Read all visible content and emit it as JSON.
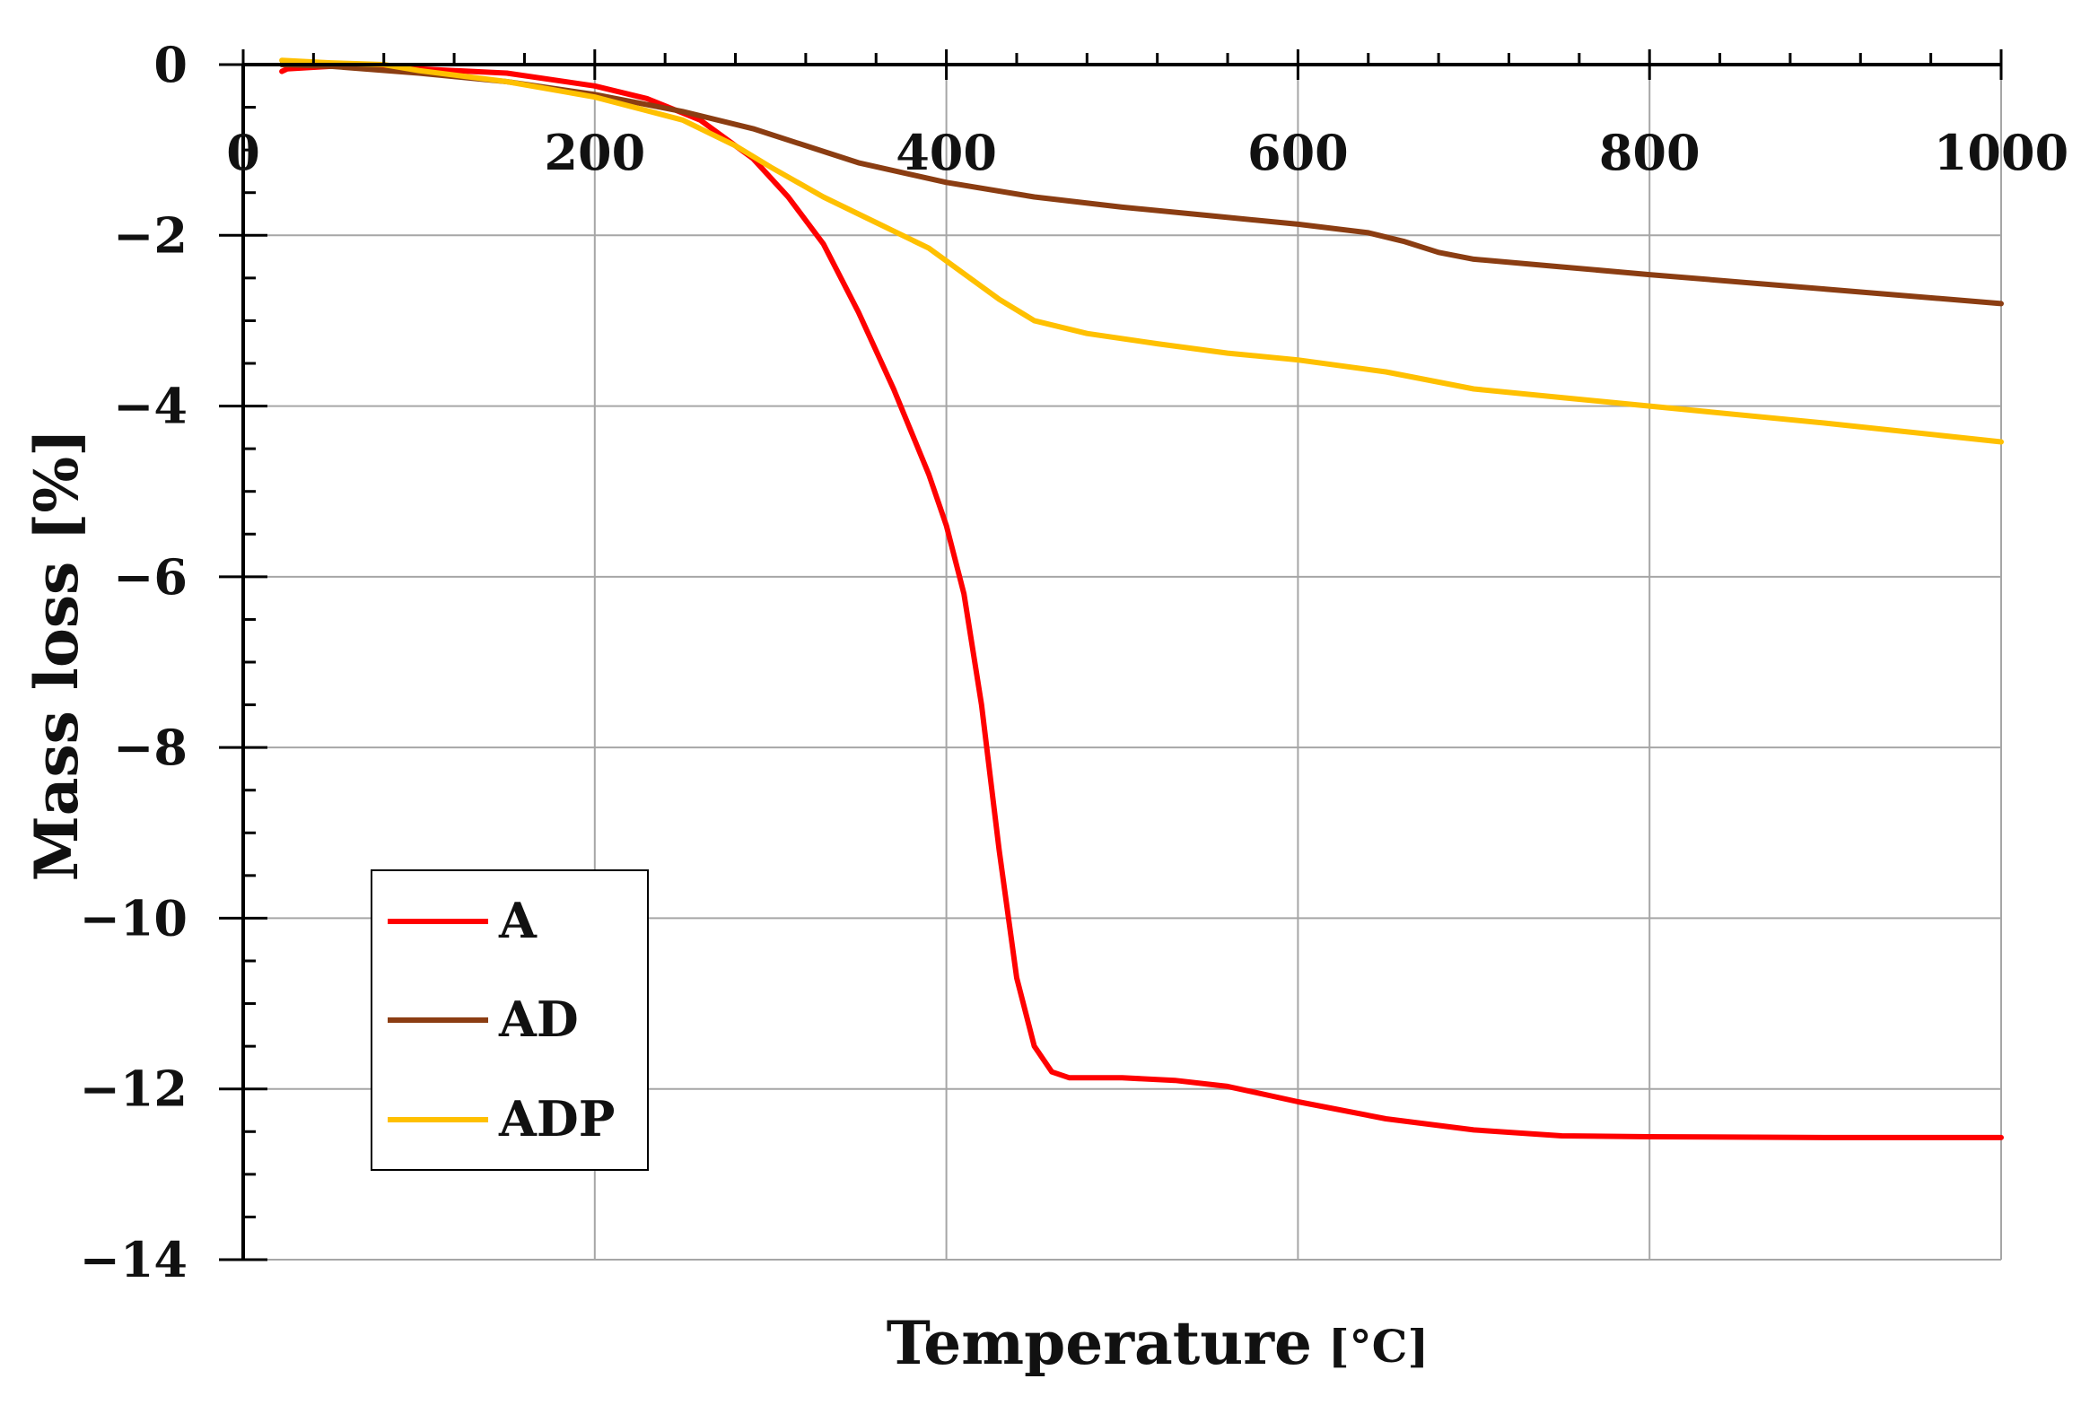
{
  "chart_data": {
    "type": "line",
    "title": "",
    "xlabel": "Temperature",
    "xunit": "[°C]",
    "ylabel": "Mass loss [%]",
    "xlim": [
      0,
      1000
    ],
    "ylim": [
      -14,
      0
    ],
    "x_ticks": [
      "0",
      "200",
      "400",
      "600",
      "800",
      "1000"
    ],
    "y_ticks": [
      "0",
      "−2",
      "−4",
      "−6",
      "−8",
      "−10",
      "−12",
      "−14"
    ],
    "grid": true,
    "legend_position": "lower-left",
    "series": [
      {
        "name": "A",
        "color": "#ff0000",
        "x": [
          22,
          25,
          50,
          100,
          150,
          200,
          230,
          260,
          290,
          310,
          330,
          350,
          370,
          390,
          400,
          410,
          420,
          430,
          440,
          450,
          460,
          470,
          480,
          500,
          530,
          560,
          600,
          650,
          700,
          750,
          800,
          900,
          1000
        ],
        "y": [
          -0.08,
          -0.05,
          -0.02,
          -0.05,
          -0.1,
          -0.25,
          -0.4,
          -0.65,
          -1.1,
          -1.55,
          -2.1,
          -2.9,
          -3.8,
          -4.8,
          -5.4,
          -6.2,
          -7.5,
          -9.2,
          -10.7,
          -11.5,
          -11.8,
          -11.87,
          -11.87,
          -11.87,
          -11.9,
          -11.97,
          -12.15,
          -12.35,
          -12.48,
          -12.55,
          -12.56,
          -12.57,
          -12.57
        ]
      },
      {
        "name": "AD",
        "color": "#8b3d12",
        "x": [
          22,
          50,
          100,
          150,
          200,
          250,
          290,
          320,
          350,
          400,
          450,
          500,
          550,
          600,
          640,
          660,
          680,
          700,
          750,
          800,
          900,
          1000
        ],
        "y": [
          0.0,
          -0.02,
          -0.1,
          -0.2,
          -0.35,
          -0.55,
          -0.75,
          -0.95,
          -1.15,
          -1.38,
          -1.55,
          -1.67,
          -1.77,
          -1.87,
          -1.97,
          -2.07,
          -2.2,
          -2.28,
          -2.37,
          -2.46,
          -2.63,
          -2.8
        ]
      },
      {
        "name": "ADP",
        "color": "#ffc000",
        "x": [
          22,
          50,
          80,
          100,
          150,
          200,
          250,
          280,
          300,
          330,
          360,
          390,
          410,
          430,
          450,
          480,
          520,
          560,
          600,
          650,
          700,
          750,
          800,
          900,
          1000
        ],
        "y": [
          0.05,
          0.02,
          0.0,
          -0.07,
          -0.2,
          -0.38,
          -0.65,
          -0.95,
          -1.2,
          -1.55,
          -1.85,
          -2.15,
          -2.45,
          -2.75,
          -3.0,
          -3.15,
          -3.27,
          -3.38,
          -3.46,
          -3.6,
          -3.8,
          -3.9,
          -4.0,
          -4.2,
          -4.42
        ]
      }
    ]
  }
}
